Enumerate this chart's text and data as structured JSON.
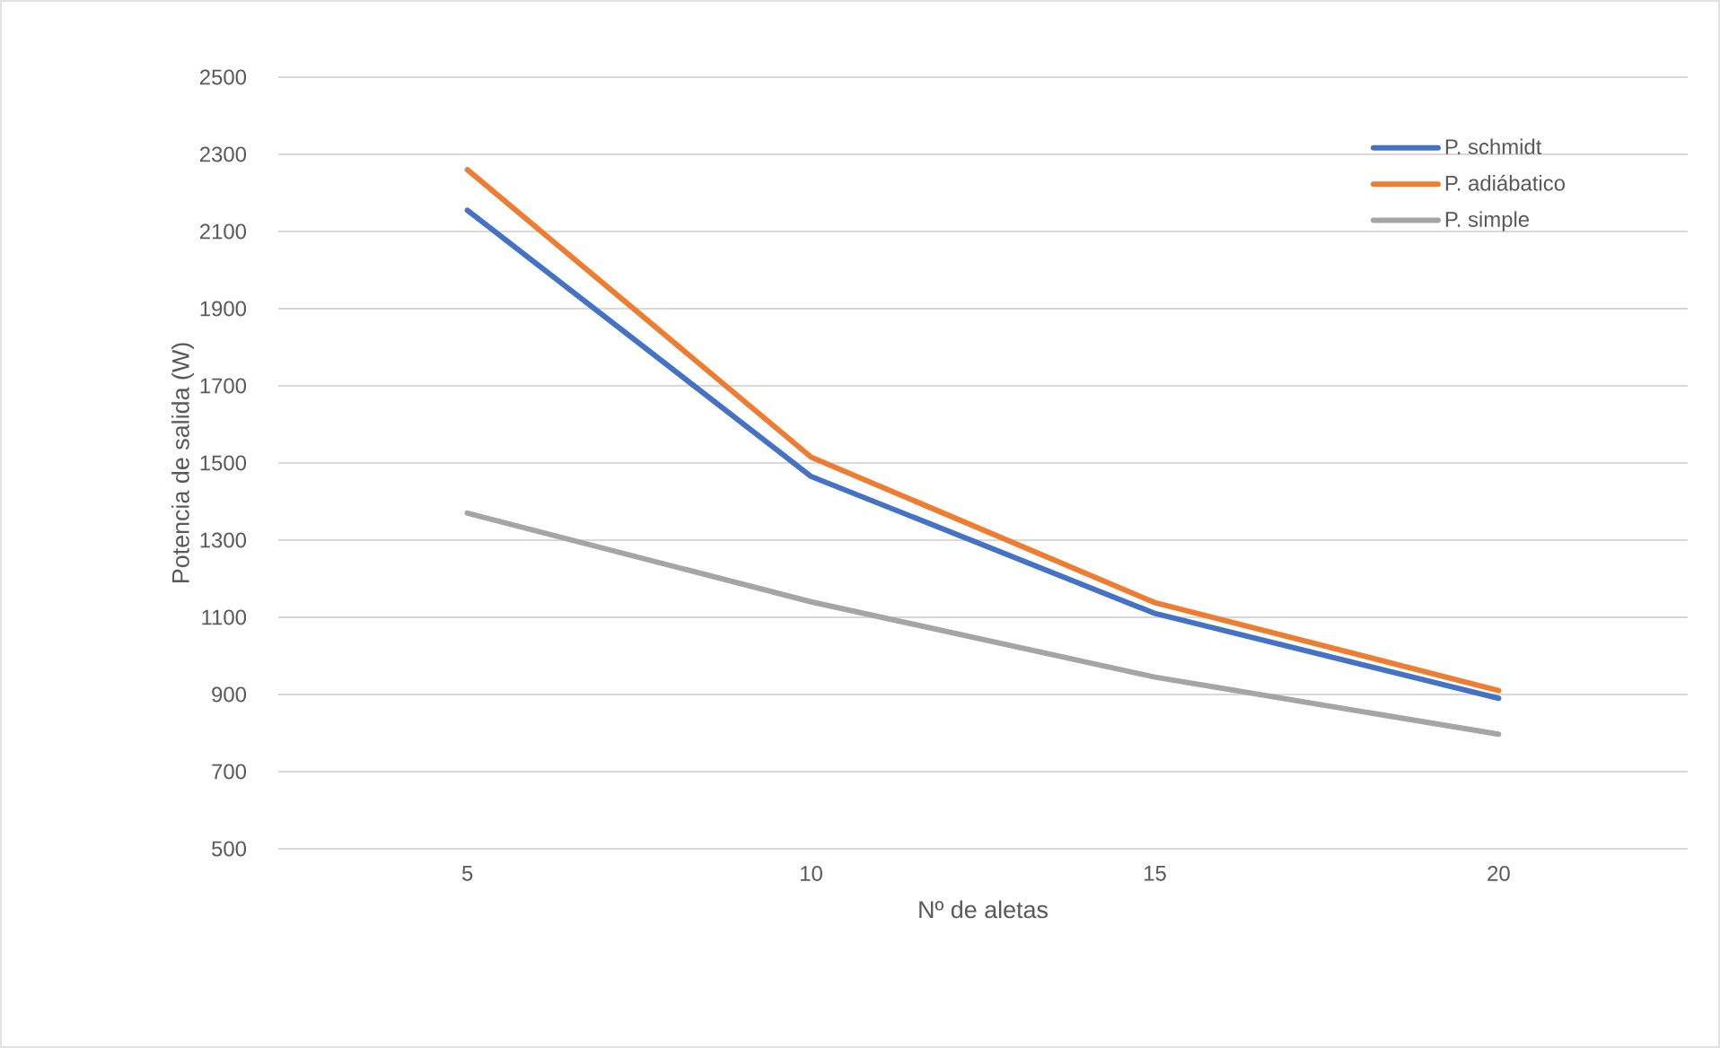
{
  "chart_data": {
    "type": "line",
    "xlabel": "Nº de aletas",
    "ylabel": "Potencia de salida (W)",
    "categories": [
      "5",
      "10",
      "15",
      "20"
    ],
    "series": [
      {
        "name": "P. schmidt",
        "color": "#4472c4",
        "values": [
          2155,
          1465,
          1110,
          890
        ]
      },
      {
        "name": "P. adiábatico",
        "color": "#ed7d31",
        "values": [
          2260,
          1515,
          1138,
          910
        ]
      },
      {
        "name": "P. simple",
        "color": "#a5a5a5",
        "values": [
          1370,
          1140,
          945,
          797
        ]
      }
    ],
    "ylim": [
      500,
      2500
    ],
    "yticks": [
      500,
      700,
      900,
      1100,
      1300,
      1500,
      1700,
      1900,
      2100,
      2300,
      2500
    ],
    "grid": "y",
    "legend": "top right",
    "marker": "none",
    "line_style": "solid"
  }
}
